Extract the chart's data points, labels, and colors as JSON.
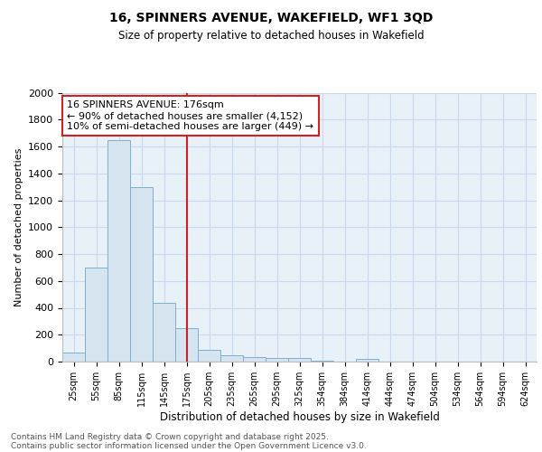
{
  "title": "16, SPINNERS AVENUE, WAKEFIELD, WF1 3QD",
  "subtitle": "Size of property relative to detached houses in Wakefield",
  "xlabel": "Distribution of detached houses by size in Wakefield",
  "ylabel": "Number of detached properties",
  "bar_labels": [
    "25sqm",
    "55sqm",
    "85sqm",
    "115sqm",
    "145sqm",
    "175sqm",
    "205sqm",
    "235sqm",
    "265sqm",
    "295sqm",
    "325sqm",
    "354sqm",
    "384sqm",
    "414sqm",
    "444sqm",
    "474sqm",
    "504sqm",
    "534sqm",
    "564sqm",
    "594sqm",
    "624sqm"
  ],
  "bar_values": [
    70,
    700,
    1650,
    1300,
    440,
    250,
    90,
    50,
    35,
    25,
    25,
    5,
    0,
    20,
    0,
    0,
    0,
    0,
    0,
    0,
    0
  ],
  "bar_color": "#d6e4f0",
  "bar_edgecolor": "#7aafd4",
  "red_line_x": 5,
  "annotation_line1": "16 SPINNERS AVENUE: 176sqm",
  "annotation_line2": "← 90% of detached houses are smaller (4,152)",
  "annotation_line3": "10% of semi-detached houses are larger (449) →",
  "red_line_color": "#cc2222",
  "annotation_box_facecolor": "#ffffff",
  "annotation_box_edgecolor": "#cc2222",
  "grid_color": "#c8d8ee",
  "background_color": "#e8f0f8",
  "ylim": [
    0,
    2000
  ],
  "yticks": [
    0,
    200,
    400,
    600,
    800,
    1000,
    1200,
    1400,
    1600,
    1800,
    2000
  ],
  "footer_line1": "Contains HM Land Registry data © Crown copyright and database right 2025.",
  "footer_line2": "Contains public sector information licensed under the Open Government Licence v3.0."
}
